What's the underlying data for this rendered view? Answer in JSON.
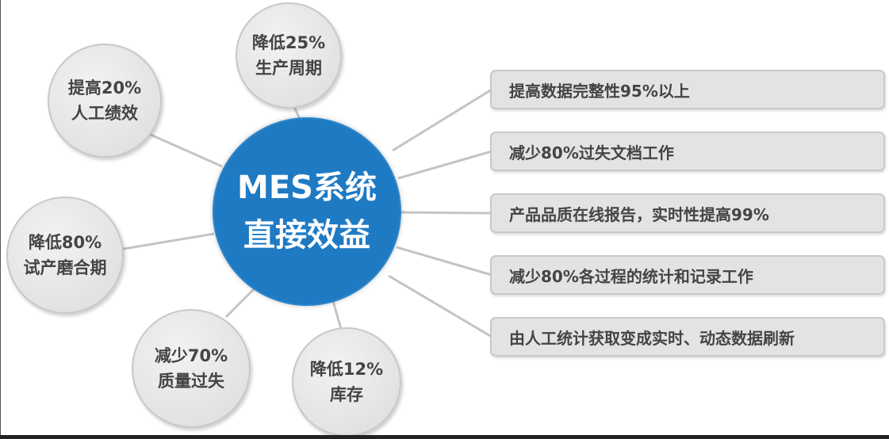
{
  "center": {
    "line1": "MES系统",
    "line2": "直接效益",
    "color": "#1f7ac4"
  },
  "bubbles": [
    {
      "line1": "降低25%",
      "line2": "生产周期"
    },
    {
      "line1": "提高20%",
      "line2": "人工绩效"
    },
    {
      "line1": "降低80%",
      "line2": "试产磨合期"
    },
    {
      "line1": "减少70%",
      "line2": "质量过失"
    },
    {
      "line1": "降低12%",
      "line2": "库存"
    }
  ],
  "boxes": [
    "提高数据完整性95%以上",
    "减少80%过失文档工作",
    "产品品质在线报告，实时性提高99%",
    "减少80%各过程的统计和记录工作",
    "由人工统计获取变成实时、动态数据刷新"
  ]
}
